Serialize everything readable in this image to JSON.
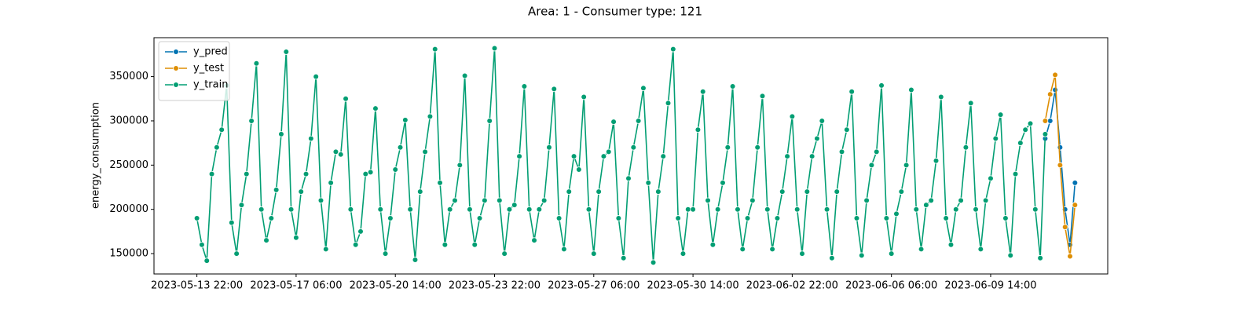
{
  "chart_data": {
    "type": "line",
    "title": "Area: 1 - Consumer type: 121",
    "y_label": "energy_consumption",
    "xlim": [
      "2023-05-12 11:24",
      "2023-06-13 12:24"
    ],
    "xticks": [
      "2023-05-13 22:00",
      "2023-05-17 06:00",
      "2023-05-20 14:00",
      "2023-05-23 22:00",
      "2023-05-27 06:00",
      "2023-05-30 14:00",
      "2023-06-02 22:00",
      "2023-06-06 06:00",
      "2023-06-09 14:00"
    ],
    "ylim": [
      127000,
      394000
    ],
    "yticks": [
      150000,
      200000,
      250000,
      300000,
      350000
    ],
    "grid": false,
    "legend": "upper left",
    "series": [
      {
        "name": "y_pred",
        "color": "#0173b2",
        "x": [
          "2023-06-11 10:00",
          "2023-06-11 14:00",
          "2023-06-11 18:00",
          "2023-06-11 22:00",
          "2023-06-12 02:00",
          "2023-06-12 06:00",
          "2023-06-12 10:00"
        ],
        "values": [
          280000,
          300000,
          335000,
          270000,
          200000,
          160000,
          230000
        ]
      },
      {
        "name": "y_test",
        "color": "#de8f05",
        "x": [
          "2023-06-11 10:00",
          "2023-06-11 14:00",
          "2023-06-11 18:00",
          "2023-06-11 22:00",
          "2023-06-12 02:00",
          "2023-06-12 06:00",
          "2023-06-12 10:00"
        ],
        "values": [
          300000,
          330000,
          352000,
          250000,
          180000,
          147000,
          205000
        ]
      },
      {
        "name": "y_train",
        "color": "#029e73",
        "x": [
          "2023-05-13 22:00",
          "2023-05-14 02:00",
          "2023-05-14 06:00",
          "2023-05-14 10:00",
          "2023-05-14 14:00",
          "2023-05-14 18:00",
          "2023-05-14 22:00",
          "2023-05-15 02:00",
          "2023-05-15 06:00",
          "2023-05-15 10:00",
          "2023-05-15 14:00",
          "2023-05-15 18:00",
          "2023-05-15 22:00",
          "2023-05-16 02:00",
          "2023-05-16 06:00",
          "2023-05-16 10:00",
          "2023-05-16 14:00",
          "2023-05-16 18:00",
          "2023-05-16 22:00",
          "2023-05-17 02:00",
          "2023-05-17 06:00",
          "2023-05-17 10:00",
          "2023-05-17 14:00",
          "2023-05-17 18:00",
          "2023-05-17 22:00",
          "2023-05-18 02:00",
          "2023-05-18 06:00",
          "2023-05-18 10:00",
          "2023-05-18 14:00",
          "2023-05-18 18:00",
          "2023-05-18 22:00",
          "2023-05-19 02:00",
          "2023-05-19 06:00",
          "2023-05-19 10:00",
          "2023-05-19 14:00",
          "2023-05-19 18:00",
          "2023-05-19 22:00",
          "2023-05-20 02:00",
          "2023-05-20 06:00",
          "2023-05-20 10:00",
          "2023-05-20 14:00",
          "2023-05-20 18:00",
          "2023-05-20 22:00",
          "2023-05-21 02:00",
          "2023-05-21 06:00",
          "2023-05-21 10:00",
          "2023-05-21 14:00",
          "2023-05-21 18:00",
          "2023-05-21 22:00",
          "2023-05-22 02:00",
          "2023-05-22 06:00",
          "2023-05-22 10:00",
          "2023-05-22 14:00",
          "2023-05-22 18:00",
          "2023-05-22 22:00",
          "2023-05-23 02:00",
          "2023-05-23 06:00",
          "2023-05-23 10:00",
          "2023-05-23 14:00",
          "2023-05-23 18:00",
          "2023-05-23 22:00",
          "2023-05-24 02:00",
          "2023-05-24 06:00",
          "2023-05-24 10:00",
          "2023-05-24 14:00",
          "2023-05-24 18:00",
          "2023-05-24 22:00",
          "2023-05-25 02:00",
          "2023-05-25 06:00",
          "2023-05-25 10:00",
          "2023-05-25 14:00",
          "2023-05-25 18:00",
          "2023-05-25 22:00",
          "2023-05-26 02:00",
          "2023-05-26 06:00",
          "2023-05-26 10:00",
          "2023-05-26 14:00",
          "2023-05-26 18:00",
          "2023-05-26 22:00",
          "2023-05-27 02:00",
          "2023-05-27 06:00",
          "2023-05-27 10:00",
          "2023-05-27 14:00",
          "2023-05-27 18:00",
          "2023-05-27 22:00",
          "2023-05-28 02:00",
          "2023-05-28 06:00",
          "2023-05-28 10:00",
          "2023-05-28 14:00",
          "2023-05-28 18:00",
          "2023-05-28 22:00",
          "2023-05-29 02:00",
          "2023-05-29 06:00",
          "2023-05-29 10:00",
          "2023-05-29 14:00",
          "2023-05-29 18:00",
          "2023-05-29 22:00",
          "2023-05-30 02:00",
          "2023-05-30 06:00",
          "2023-05-30 10:00",
          "2023-05-30 14:00",
          "2023-05-30 18:00",
          "2023-05-30 22:00",
          "2023-05-31 02:00",
          "2023-05-31 06:00",
          "2023-05-31 10:00",
          "2023-05-31 14:00",
          "2023-05-31 18:00",
          "2023-05-31 22:00",
          "2023-06-01 02:00",
          "2023-06-01 06:00",
          "2023-06-01 10:00",
          "2023-06-01 14:00",
          "2023-06-01 18:00",
          "2023-06-01 22:00",
          "2023-06-02 02:00",
          "2023-06-02 06:00",
          "2023-06-02 10:00",
          "2023-06-02 14:00",
          "2023-06-02 18:00",
          "2023-06-02 22:00",
          "2023-06-03 02:00",
          "2023-06-03 06:00",
          "2023-06-03 10:00",
          "2023-06-03 14:00",
          "2023-06-03 18:00",
          "2023-06-03 22:00",
          "2023-06-04 02:00",
          "2023-06-04 06:00",
          "2023-06-04 10:00",
          "2023-06-04 14:00",
          "2023-06-04 18:00",
          "2023-06-04 22:00",
          "2023-06-05 02:00",
          "2023-06-05 06:00",
          "2023-06-05 10:00",
          "2023-06-05 14:00",
          "2023-06-05 18:00",
          "2023-06-05 22:00",
          "2023-06-06 02:00",
          "2023-06-06 06:00",
          "2023-06-06 10:00",
          "2023-06-06 14:00",
          "2023-06-06 18:00",
          "2023-06-06 22:00",
          "2023-06-07 02:00",
          "2023-06-07 06:00",
          "2023-06-07 10:00",
          "2023-06-07 14:00",
          "2023-06-07 18:00",
          "2023-06-07 22:00",
          "2023-06-08 02:00",
          "2023-06-08 06:00",
          "2023-06-08 10:00",
          "2023-06-08 14:00",
          "2023-06-08 18:00",
          "2023-06-08 22:00",
          "2023-06-09 02:00",
          "2023-06-09 06:00",
          "2023-06-09 10:00",
          "2023-06-09 14:00",
          "2023-06-09 18:00",
          "2023-06-09 22:00",
          "2023-06-10 02:00",
          "2023-06-10 06:00",
          "2023-06-10 10:00",
          "2023-06-10 14:00",
          "2023-06-10 18:00",
          "2023-06-10 22:00",
          "2023-06-11 02:00",
          "2023-06-11 06:00",
          "2023-06-11 10:00"
        ],
        "values": [
          190000,
          160000,
          142000,
          240000,
          270000,
          290000,
          340000,
          185000,
          150000,
          205000,
          240000,
          300000,
          365000,
          200000,
          165000,
          190000,
          222000,
          285000,
          378000,
          200000,
          168000,
          220000,
          240000,
          280000,
          350000,
          210000,
          155000,
          230000,
          265000,
          262000,
          325000,
          200000,
          160000,
          175000,
          240000,
          242000,
          314000,
          200000,
          150000,
          190000,
          245000,
          270000,
          301000,
          200000,
          143000,
          220000,
          265000,
          305000,
          381000,
          230000,
          160000,
          200000,
          210000,
          250000,
          351000,
          200000,
          160000,
          190000,
          210000,
          300000,
          382000,
          210000,
          150000,
          200000,
          205000,
          260000,
          339000,
          200000,
          165000,
          200000,
          210000,
          270000,
          336000,
          190000,
          155000,
          220000,
          260000,
          245000,
          327000,
          200000,
          150000,
          220000,
          260000,
          265000,
          299000,
          190000,
          145000,
          235000,
          270000,
          300000,
          337000,
          230000,
          140000,
          220000,
          260000,
          320000,
          381000,
          190000,
          150000,
          200000,
          200000,
          290000,
          333000,
          210000,
          160000,
          200000,
          230000,
          270000,
          339000,
          200000,
          155000,
          190000,
          210000,
          270000,
          328000,
          200000,
          155000,
          190000,
          220000,
          260000,
          305000,
          200000,
          150000,
          220000,
          260000,
          280000,
          300000,
          200000,
          145000,
          220000,
          265000,
          290000,
          333000,
          190000,
          148000,
          210000,
          250000,
          265000,
          340000,
          190000,
          150000,
          195000,
          220000,
          250000,
          335000,
          200000,
          155000,
          205000,
          210000,
          255000,
          327000,
          190000,
          160000,
          200000,
          210000,
          270000,
          320000,
          200000,
          155000,
          210000,
          235000,
          280000,
          307000,
          190000,
          148000,
          240000,
          275000,
          290000,
          297000,
          200000,
          145000,
          285000
        ]
      }
    ]
  }
}
